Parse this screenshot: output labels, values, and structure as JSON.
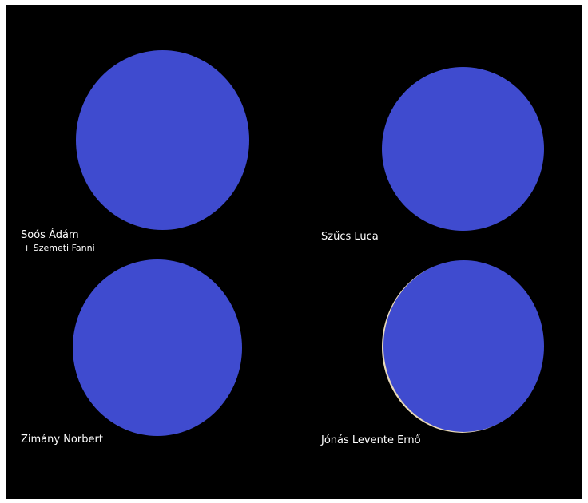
{
  "participants": [
    {
      "name": "Soós Ádám",
      "extra": "+ Szemeti Fanni"
    },
    {
      "name": "Szűcs Luca"
    },
    {
      "name": "Zimány Norbert"
    },
    {
      "name": "Jónás Levente Ernő"
    }
  ],
  "colors": {
    "background": "#000000",
    "avatar": "#3f4bcf",
    "text": "#ffffff"
  }
}
